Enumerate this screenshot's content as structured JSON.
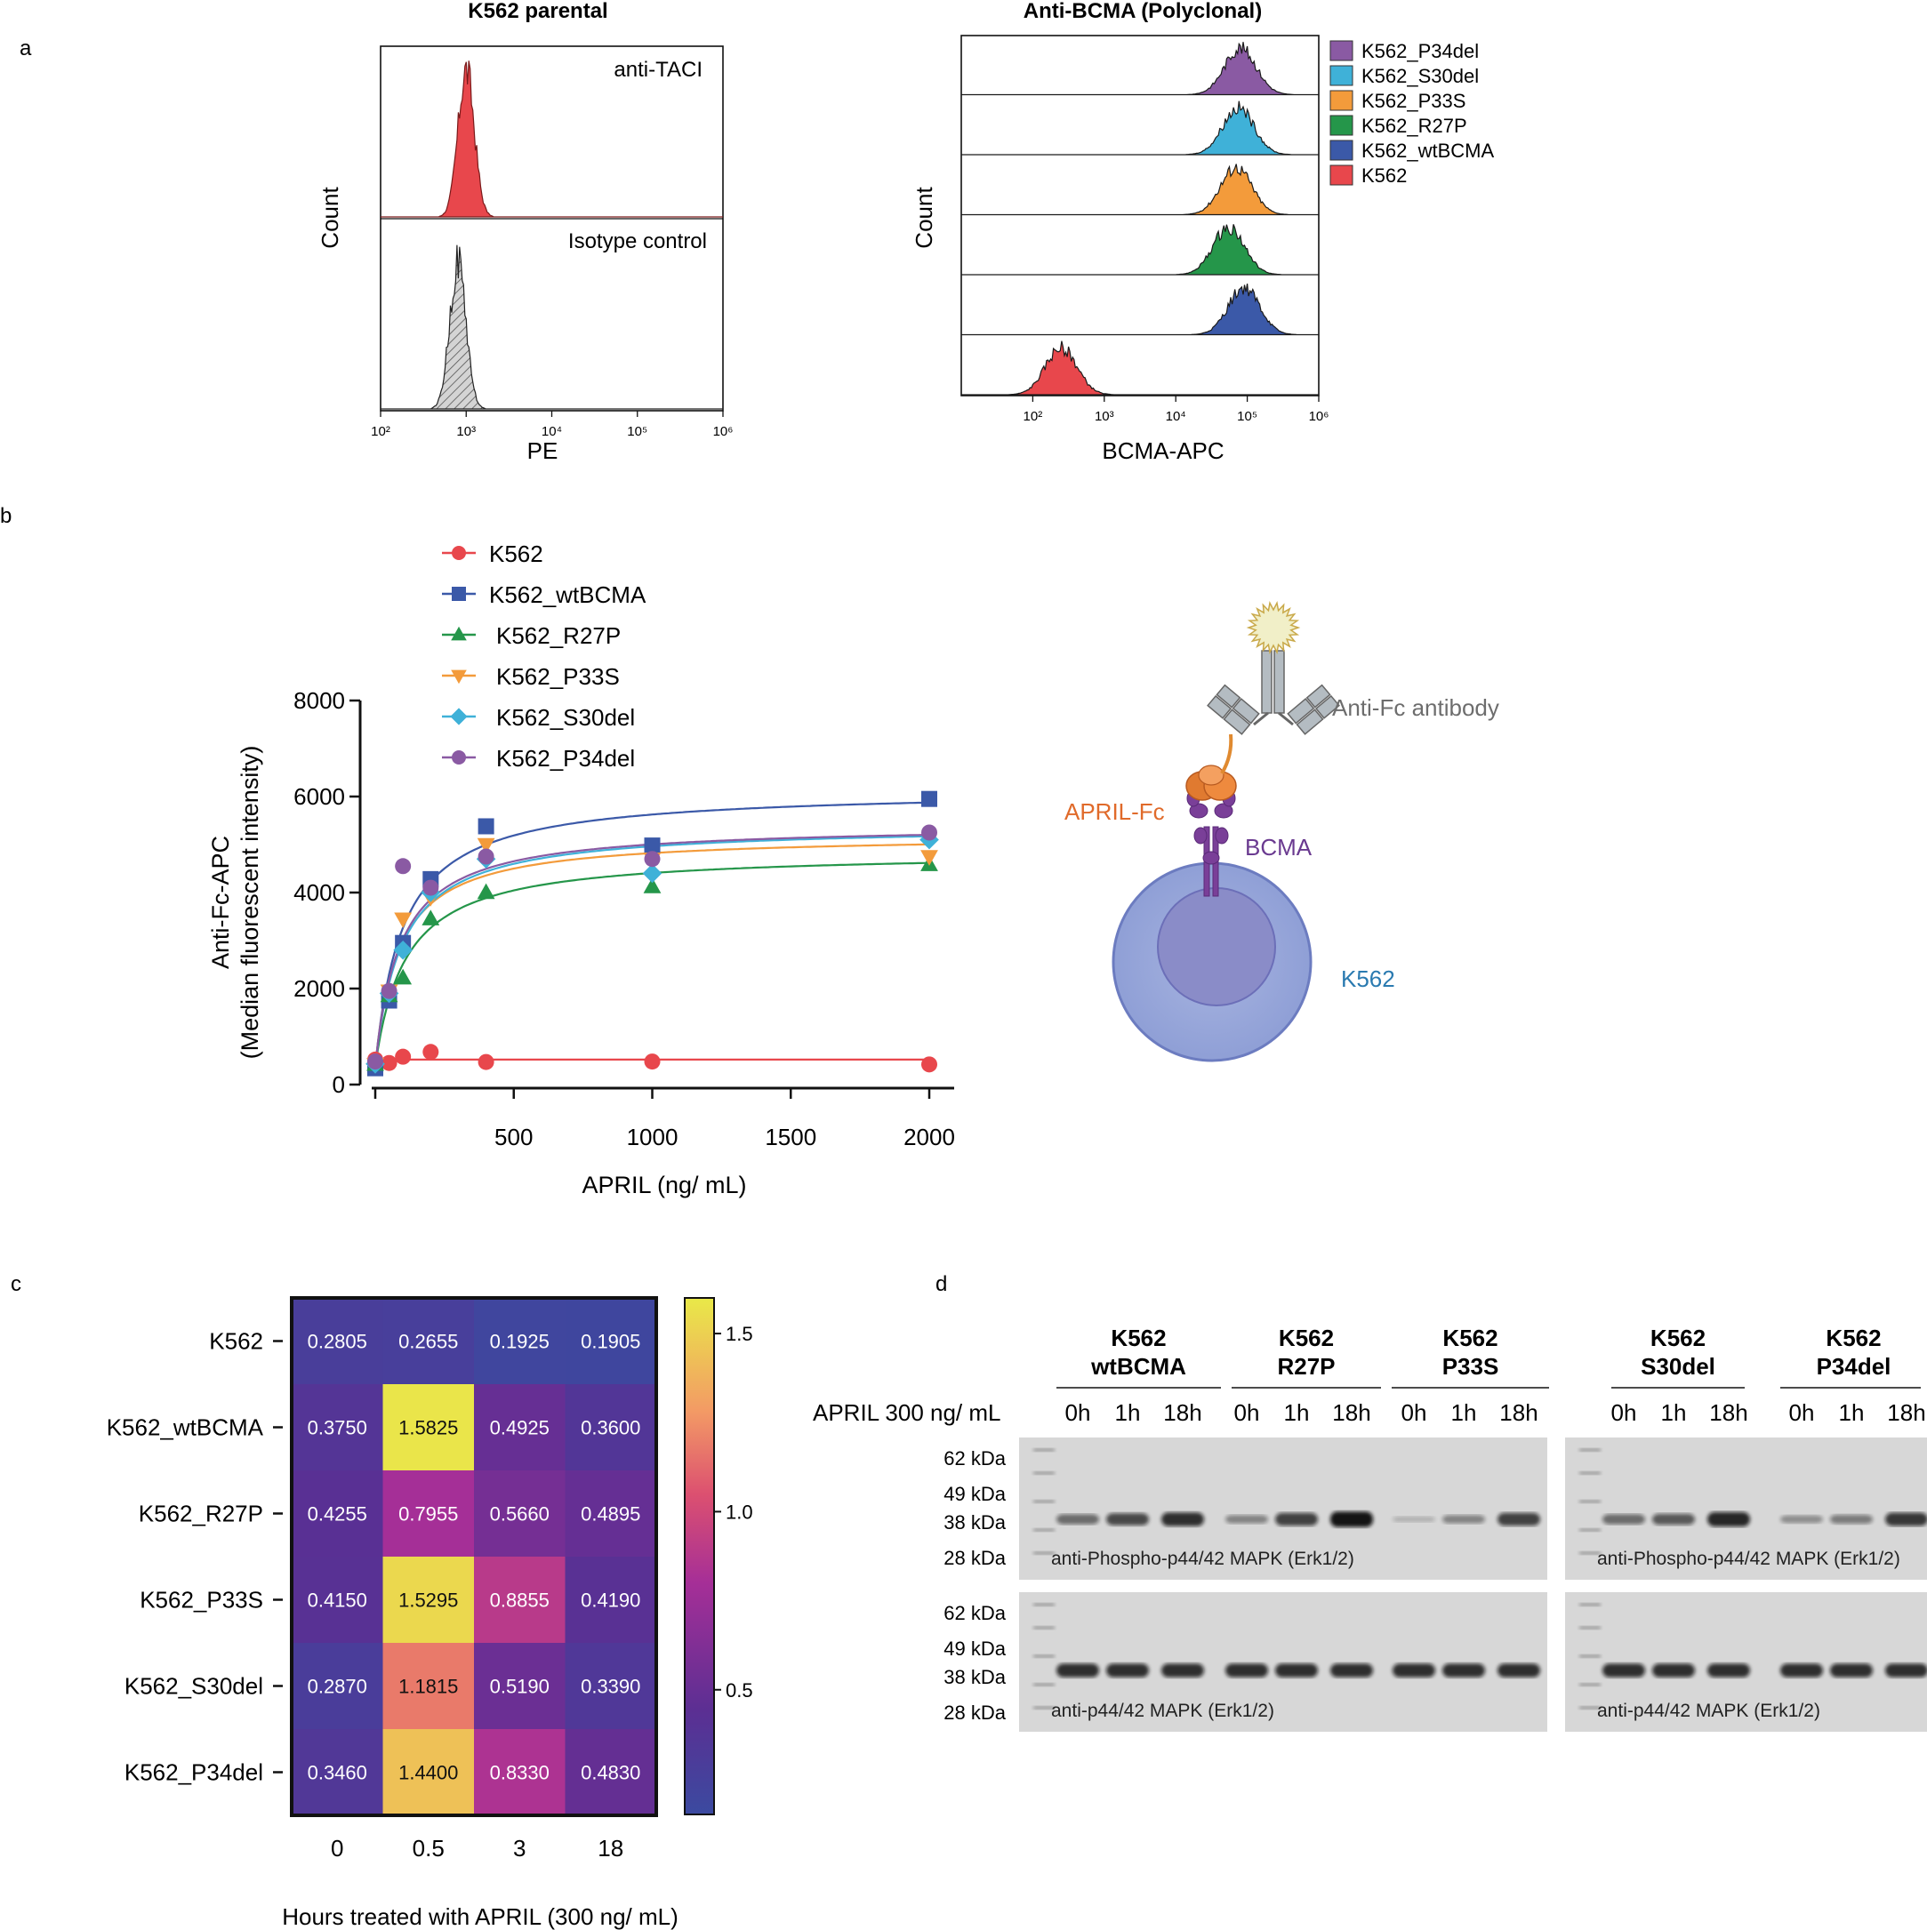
{
  "panels": {
    "a": "a",
    "b": "b",
    "c": "c",
    "d": "d"
  },
  "colors": {
    "K562": "#e8474c",
    "K562_wtBCMA": "#3b59a8",
    "K562_R27P": "#25964a",
    "K562_P33S": "#f39b3b",
    "K562_S30del": "#3fb1d8",
    "K562_P34del": "#8a5aa3"
  },
  "chart_data": [
    {
      "id": "a1",
      "type": "histogram",
      "title": "K562 parental",
      "xlabel": "PE",
      "ylabel": "Count",
      "xscale": "log",
      "xlim": [
        100,
        1000000
      ],
      "ticks": [
        "10²",
        "10³",
        "10⁴",
        "10⁵",
        "10⁶"
      ],
      "tracks": [
        {
          "label": "anti-TACI",
          "peak": 1000,
          "fill": "#e8474c",
          "pattern": false
        },
        {
          "label": "Isotype control",
          "peak": 800,
          "fill": "#cccccc",
          "pattern": true
        }
      ]
    },
    {
      "id": "a2",
      "type": "histogram",
      "title": "Anti-BCMA (Polyclonal)",
      "xlabel": "BCMA-APC",
      "ylabel": "Count",
      "xscale": "log",
      "xlim": [
        10,
        1000000
      ],
      "ticks": [
        "10²",
        "10³",
        "10⁴",
        "10⁵",
        "10⁶"
      ],
      "legend": [
        "K562_P34del",
        "K562_S30del",
        "K562_P33S",
        "K562_R27P",
        "K562_wtBCMA",
        "K562"
      ],
      "tracks": [
        {
          "label": "K562_P34del",
          "peak": 80000,
          "fill": "#8a5aa3"
        },
        {
          "label": "K562_S30del",
          "peak": 75000,
          "fill": "#3fb1d8"
        },
        {
          "label": "K562_P33S",
          "peak": 70000,
          "fill": "#f39b3b"
        },
        {
          "label": "K562_R27P",
          "peak": 55000,
          "fill": "#25964a"
        },
        {
          "label": "K562_wtBCMA",
          "peak": 90000,
          "fill": "#3b59a8"
        },
        {
          "label": "K562",
          "peak": 250,
          "fill": "#e8474c"
        }
      ]
    },
    {
      "id": "b",
      "type": "scatter",
      "xlabel": "APRIL (ng/ mL)",
      "ylabel": "Anti-Fc-APC",
      "ylabel2": "(Median fluorescent intensity)",
      "xlim": [
        0,
        2000
      ],
      "ylim": [
        0,
        8000
      ],
      "xticks": [
        500,
        1000,
        1500,
        2000
      ],
      "yticks": [
        0,
        2000,
        4000,
        6000,
        8000
      ],
      "x": [
        0,
        50,
        100,
        200,
        400,
        1000,
        2000
      ],
      "series": [
        {
          "name": "K562",
          "marker": "circle",
          "values": [
            520,
            450,
            580,
            680,
            470,
            480,
            420
          ],
          "fit": {
            "flat": 520
          }
        },
        {
          "name": "K562_wtBCMA",
          "marker": "square",
          "values": [
            340,
            1750,
            2950,
            4280,
            5380,
            4980,
            5950
          ],
          "fit": {
            "bmax": 6150,
            "kd": 100
          }
        },
        {
          "name": "K562_R27P",
          "marker": "triangle",
          "values": [
            420,
            1850,
            2220,
            3450,
            4000,
            4120,
            4580
          ],
          "fit": {
            "bmax": 4850,
            "kd": 110
          }
        },
        {
          "name": "K562_P33S",
          "marker": "triangle-down",
          "values": [
            420,
            1950,
            3450,
            3900,
            5000,
            4700,
            4750
          ],
          "fit": {
            "bmax": 5200,
            "kd": 85
          }
        },
        {
          "name": "K562_S30del",
          "marker": "diamond",
          "values": [
            430,
            1900,
            2800,
            4000,
            4700,
            4400,
            5100
          ],
          "fit": {
            "bmax": 5400,
            "kd": 95
          }
        },
        {
          "name": "K562_P34del",
          "marker": "circle",
          "values": [
            480,
            1950,
            4550,
            4100,
            4750,
            4700,
            5250
          ],
          "fit": {
            "bmax": 5420,
            "kd": 90
          }
        }
      ]
    },
    {
      "id": "c",
      "type": "heatmap",
      "xlabel": "Hours treated with APRIL (300 ng/ mL)",
      "x": [
        "0",
        "0.5",
        "3",
        "18"
      ],
      "y": [
        "K562",
        "K562_wtBCMA",
        "K562_R27P",
        "K562_P33S",
        "K562_S30del",
        "K562_P34del"
      ],
      "values": [
        [
          "0.2805",
          "0.2655",
          "0.1925",
          "0.1905"
        ],
        [
          "0.3750",
          "1.5825",
          "0.4925",
          "0.3600"
        ],
        [
          "0.4255",
          "0.7955",
          "0.5660",
          "0.4895"
        ],
        [
          "0.4150",
          "1.5295",
          "0.8855",
          "0.4190"
        ],
        [
          "0.2870",
          "1.1815",
          "0.5190",
          "0.3390"
        ],
        [
          "0.3460",
          "1.4400",
          "0.8330",
          "0.4830"
        ]
      ],
      "colorbar": {
        "min": 0.15,
        "max": 1.6,
        "ticks": [
          {
            "v": 1.5,
            "label": "1.5"
          },
          {
            "v": 1.0,
            "label": "1.0"
          },
          {
            "v": 0.5,
            "label": "0.5"
          }
        ]
      }
    }
  ],
  "schematic": {
    "anti_fc": "Anti-Fc antibody",
    "april_fc": "APRIL-Fc",
    "bcma": "BCMA",
    "cell": "K562"
  },
  "western": {
    "treatment_label": "APRIL 300 ng/ mL",
    "times": [
      "0h",
      "1h",
      "18h"
    ],
    "groups": [
      {
        "line1": "K562",
        "line2": "wtBCMA"
      },
      {
        "line1": "K562",
        "line2": "R27P"
      },
      {
        "line1": "K562",
        "line2": "P33S"
      },
      {
        "line1": "K562",
        "line2": "S30del"
      },
      {
        "line1": "K562",
        "line2": "P34del"
      }
    ],
    "markers": [
      "62 kDa",
      "49 kDa",
      "38 kDa",
      "28 kDa"
    ],
    "top_label": "anti-Phospho-p44/42 MAPK (Erk1/2)",
    "bottom_label": "anti-p44/42 MAPK (Erk1/2)",
    "phospho_intensity": [
      0.45,
      0.65,
      0.8,
      0.3,
      0.7,
      0.95,
      0.05,
      0.3,
      0.7,
      0.45,
      0.55,
      0.85,
      0.25,
      0.35,
      0.75
    ],
    "total_intensity": [
      0.8,
      0.8,
      0.8,
      0.8,
      0.8,
      0.8,
      0.8,
      0.8,
      0.8,
      0.8,
      0.8,
      0.8,
      0.8,
      0.8,
      0.8
    ]
  }
}
